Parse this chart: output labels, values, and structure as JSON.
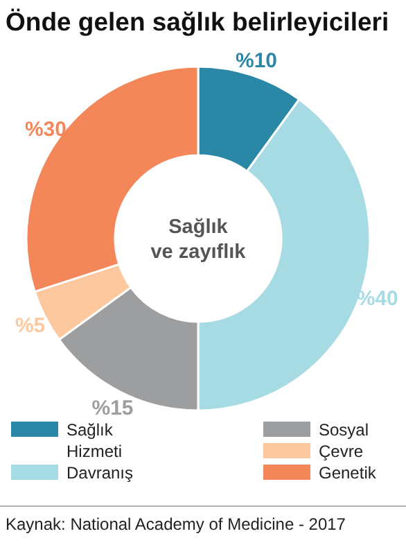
{
  "chart_data": {
    "type": "donut",
    "title": "Önde gelen sağlık belirleyicileri",
    "categories": [
      "Sağlık Hizmeti",
      "Davranış",
      "Sosyal",
      "Çevre",
      "Genetik"
    ],
    "values": [
      10,
      40,
      15,
      5,
      30
    ],
    "colors": [
      "#2b87a6",
      "#a6dbe4",
      "#9d9ea0",
      "#fdc89d",
      "#f4875a"
    ],
    "value_labels": [
      "%10",
      "%40",
      "%15",
      "%5",
      "%30"
    ],
    "legend": "bottom",
    "annotations": [
      "Sağlık\nve zayıflık",
      "Kaynak: National Academy of Medicine - 2017"
    ]
  }
}
